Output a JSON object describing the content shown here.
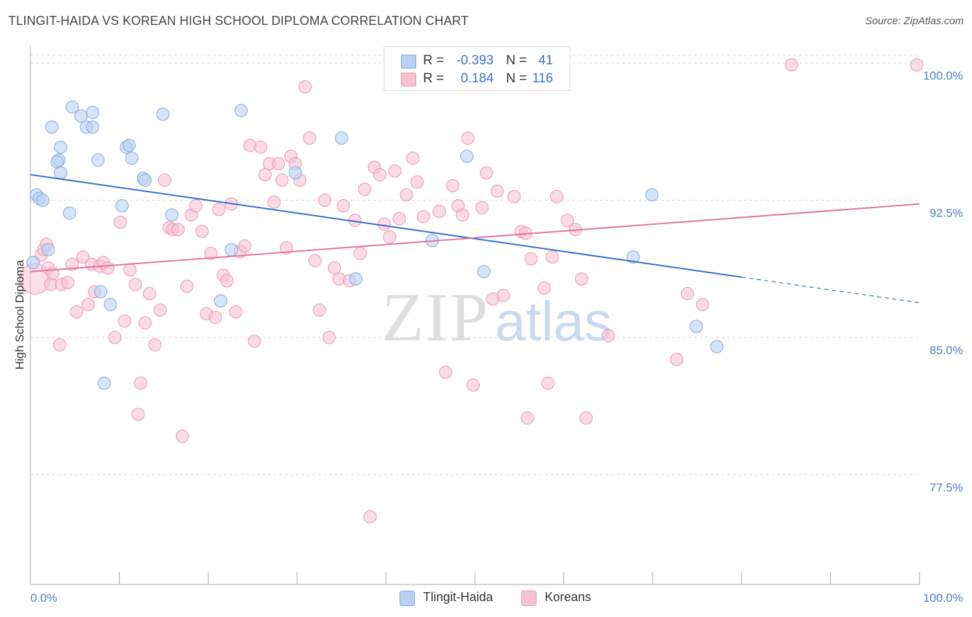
{
  "header": {
    "title": "TLINGIT-HAIDA VS KOREAN HIGH SCHOOL DIPLOMA CORRELATION CHART",
    "source": "Source: ZipAtlas.com"
  },
  "legend": {
    "rows": [
      {
        "r_label": "R =",
        "r_value": "-0.393",
        "n_label": "N =",
        "n_value": "41"
      },
      {
        "r_label": "R =",
        "r_value": "0.184",
        "n_label": "N =",
        "n_value": "116"
      }
    ],
    "bottom": [
      "Tlingit-Haida",
      "Koreans"
    ]
  },
  "watermark": {
    "zip": "ZIP",
    "atlas": "atlas"
  },
  "colors": {
    "blue_fill": "#b9d2f3",
    "blue_stroke": "#7ea8e0",
    "blue_line": "#2f6fd0",
    "pink_fill": "#f7c3d3",
    "pink_stroke": "#ec94b2",
    "pink_line": "#e5719b",
    "tick_text": "#4a7fc9",
    "grid": "#d8d8d8"
  },
  "chart_data": {
    "type": "scatter",
    "title": "TLINGIT-HAIDA VS KOREAN HIGH SCHOOL DIPLOMA CORRELATION CHART",
    "xlabel": "",
    "ylabel": "High School Diploma",
    "xlim": [
      0,
      100
    ],
    "ylim": [
      71.5,
      100.8
    ],
    "x_tick_labels": [
      "0.0%",
      "100.0%"
    ],
    "y_ticks": [
      77.5,
      85.0,
      92.5,
      100.0
    ],
    "y_tick_labels": [
      "77.5%",
      "85.0%",
      "92.5%",
      "100.0%"
    ],
    "grid": true,
    "legend_placement": "top-center",
    "series": [
      {
        "name": "Tlingit-Haida",
        "r": -0.393,
        "n": 41,
        "trend": {
          "x0": 0,
          "y0": 93.9,
          "x1": 80,
          "y1": 88.3,
          "dashed_to_x": 100,
          "dashed_to_y": 86.9
        },
        "points": [
          [
            0.3,
            89.1
          ],
          [
            0.7,
            92.8
          ],
          [
            1.0,
            92.6
          ],
          [
            1.4,
            92.5
          ],
          [
            2.0,
            89.8
          ],
          [
            2.4,
            96.5
          ],
          [
            3.2,
            94.7
          ],
          [
            3.0,
            94.6
          ],
          [
            3.4,
            94.0
          ],
          [
            3.4,
            95.4
          ],
          [
            4.4,
            91.8
          ],
          [
            4.7,
            97.6
          ],
          [
            5.7,
            97.1
          ],
          [
            6.3,
            96.5
          ],
          [
            7.0,
            96.5
          ],
          [
            7.0,
            97.3
          ],
          [
            7.6,
            94.7
          ],
          [
            7.9,
            87.5
          ],
          [
            8.3,
            82.5
          ],
          [
            9.0,
            86.8
          ],
          [
            10.3,
            92.2
          ],
          [
            10.8,
            95.4
          ],
          [
            11.1,
            95.5
          ],
          [
            11.4,
            94.8
          ],
          [
            12.7,
            93.7
          ],
          [
            12.9,
            93.6
          ],
          [
            14.9,
            97.2
          ],
          [
            15.9,
            91.7
          ],
          [
            21.4,
            87.0
          ],
          [
            22.6,
            89.8
          ],
          [
            23.7,
            97.4
          ],
          [
            29.8,
            94.0
          ],
          [
            35.0,
            95.9
          ],
          [
            36.6,
            88.2
          ],
          [
            45.2,
            90.3
          ],
          [
            49.1,
            94.9
          ],
          [
            51.0,
            88.6
          ],
          [
            69.9,
            92.8
          ],
          [
            67.8,
            89.4
          ],
          [
            74.9,
            85.6
          ],
          [
            77.2,
            84.5
          ]
        ]
      },
      {
        "name": "Koreans",
        "r": 0.184,
        "n": 116,
        "trend": {
          "x0": 0,
          "y0": 88.6,
          "x1": 100,
          "y1": 92.3
        },
        "points": [
          [
            0.5,
            88.2
          ],
          [
            1.2,
            89.5
          ],
          [
            1.5,
            89.8
          ],
          [
            1.8,
            90.1
          ],
          [
            2.0,
            88.8
          ],
          [
            2.3,
            87.9
          ],
          [
            2.5,
            88.5
          ],
          [
            3.3,
            84.6
          ],
          [
            3.5,
            87.9
          ],
          [
            4.2,
            88.0
          ],
          [
            4.7,
            89.0
          ],
          [
            5.2,
            86.4
          ],
          [
            5.9,
            89.4
          ],
          [
            6.5,
            86.8
          ],
          [
            6.9,
            89.0
          ],
          [
            7.2,
            87.5
          ],
          [
            7.8,
            88.9
          ],
          [
            8.2,
            89.1
          ],
          [
            8.7,
            88.8
          ],
          [
            9.5,
            85.0
          ],
          [
            10.1,
            91.3
          ],
          [
            10.6,
            85.9
          ],
          [
            11.2,
            88.7
          ],
          [
            11.8,
            87.9
          ],
          [
            12.4,
            82.5
          ],
          [
            12.1,
            80.8
          ],
          [
            12.9,
            85.8
          ],
          [
            13.4,
            87.4
          ],
          [
            14.0,
            84.6
          ],
          [
            14.6,
            86.5
          ],
          [
            15.1,
            93.6
          ],
          [
            15.6,
            91.0
          ],
          [
            16.0,
            90.9
          ],
          [
            16.6,
            90.9
          ],
          [
            17.1,
            79.6
          ],
          [
            17.6,
            87.8
          ],
          [
            18.1,
            91.7
          ],
          [
            18.6,
            92.2
          ],
          [
            19.3,
            90.8
          ],
          [
            19.8,
            86.3
          ],
          [
            20.3,
            89.6
          ],
          [
            20.8,
            86.1
          ],
          [
            21.2,
            92.0
          ],
          [
            21.7,
            88.4
          ],
          [
            22.1,
            88.1
          ],
          [
            22.6,
            92.3
          ],
          [
            23.1,
            86.4
          ],
          [
            23.6,
            89.7
          ],
          [
            24.1,
            90.0
          ],
          [
            24.7,
            95.5
          ],
          [
            25.2,
            84.8
          ],
          [
            25.9,
            95.4
          ],
          [
            26.4,
            93.9
          ],
          [
            26.9,
            94.5
          ],
          [
            27.4,
            92.4
          ],
          [
            27.9,
            94.5
          ],
          [
            28.3,
            93.6
          ],
          [
            28.8,
            89.9
          ],
          [
            29.3,
            94.9
          ],
          [
            29.8,
            94.5
          ],
          [
            30.3,
            93.6
          ],
          [
            30.9,
            98.7
          ],
          [
            31.4,
            95.9
          ],
          [
            32.0,
            89.2
          ],
          [
            32.5,
            86.5
          ],
          [
            33.1,
            92.5
          ],
          [
            33.6,
            85.0
          ],
          [
            34.2,
            88.8
          ],
          [
            34.7,
            88.2
          ],
          [
            35.2,
            92.2
          ],
          [
            35.9,
            88.1
          ],
          [
            36.5,
            91.4
          ],
          [
            37.1,
            89.6
          ],
          [
            37.6,
            93.1
          ],
          [
            38.2,
            75.2
          ],
          [
            38.7,
            94.3
          ],
          [
            39.3,
            93.9
          ],
          [
            39.8,
            91.2
          ],
          [
            40.4,
            90.5
          ],
          [
            41.0,
            94.1
          ],
          [
            41.5,
            91.5
          ],
          [
            42.3,
            92.8
          ],
          [
            43.0,
            94.8
          ],
          [
            43.5,
            93.5
          ],
          [
            44.2,
            91.6
          ],
          [
            46.0,
            91.9
          ],
          [
            46.7,
            83.1
          ],
          [
            47.5,
            93.3
          ],
          [
            48.1,
            92.2
          ],
          [
            48.6,
            91.7
          ],
          [
            49.2,
            95.9
          ],
          [
            49.8,
            82.4
          ],
          [
            50.8,
            92.1
          ],
          [
            51.3,
            94.0
          ],
          [
            52.0,
            87.1
          ],
          [
            52.5,
            93.0
          ],
          [
            53.2,
            87.3
          ],
          [
            54.4,
            92.7
          ],
          [
            55.2,
            90.8
          ],
          [
            55.7,
            90.7
          ],
          [
            55.9,
            80.6
          ],
          [
            56.3,
            89.3
          ],
          [
            57.8,
            87.7
          ],
          [
            58.2,
            82.5
          ],
          [
            58.7,
            89.4
          ],
          [
            59.2,
            92.7
          ],
          [
            60.4,
            91.4
          ],
          [
            61.3,
            90.9
          ],
          [
            62.0,
            88.2
          ],
          [
            62.5,
            80.6
          ],
          [
            65.0,
            85.1
          ],
          [
            72.7,
            83.8
          ],
          [
            73.9,
            87.4
          ],
          [
            75.6,
            86.8
          ],
          [
            85.6,
            99.9
          ],
          [
            99.7,
            99.9
          ]
        ]
      }
    ]
  }
}
